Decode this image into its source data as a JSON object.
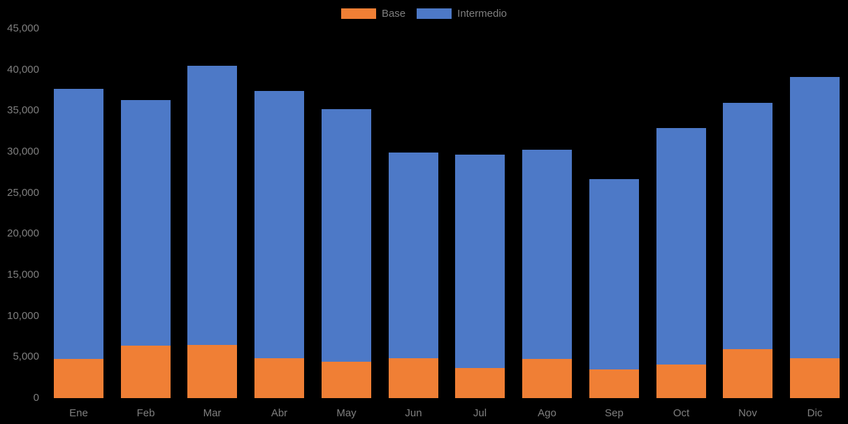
{
  "colors": {
    "background": "#000000",
    "axis_text": "#7F7F7F",
    "legend_text": "#7F7F7F",
    "base_series": "#F07F35",
    "intermedio_series": "#4D79C7"
  },
  "legend": {
    "position": "top-center"
  },
  "chart_data": {
    "type": "bar",
    "stacked": true,
    "title": "",
    "xlabel": "",
    "ylabel": "",
    "categories": [
      "Ene",
      "Feb",
      "Mar",
      "Abr",
      "May",
      "Jun",
      "Jul",
      "Ago",
      "Sep",
      "Oct",
      "Nov",
      "Dic"
    ],
    "series": [
      {
        "name": "Base",
        "color": "#F07F35",
        "values": [
          4800,
          6400,
          6500,
          4900,
          4400,
          4900,
          3700,
          4800,
          3500,
          4100,
          6000,
          4900
        ]
      },
      {
        "name": "Intermedio",
        "color": "#4D79C7",
        "values": [
          32900,
          29900,
          34000,
          32500,
          30800,
          25000,
          26000,
          25500,
          23200,
          28800,
          30000,
          34200
        ]
      }
    ],
    "totals": [
      37700,
      36300,
      40500,
      37400,
      35200,
      29900,
      29700,
      30300,
      26700,
      32900,
      36000,
      39100
    ],
    "ylim": [
      0,
      45000
    ],
    "ytick_interval": 5000,
    "ytick_labels": [
      "0",
      "5,000",
      "10,000",
      "15,000",
      "20,000",
      "25,000",
      "30,000",
      "35,000",
      "40,000",
      "45,000"
    ],
    "grid": false,
    "legend_position": "top"
  }
}
